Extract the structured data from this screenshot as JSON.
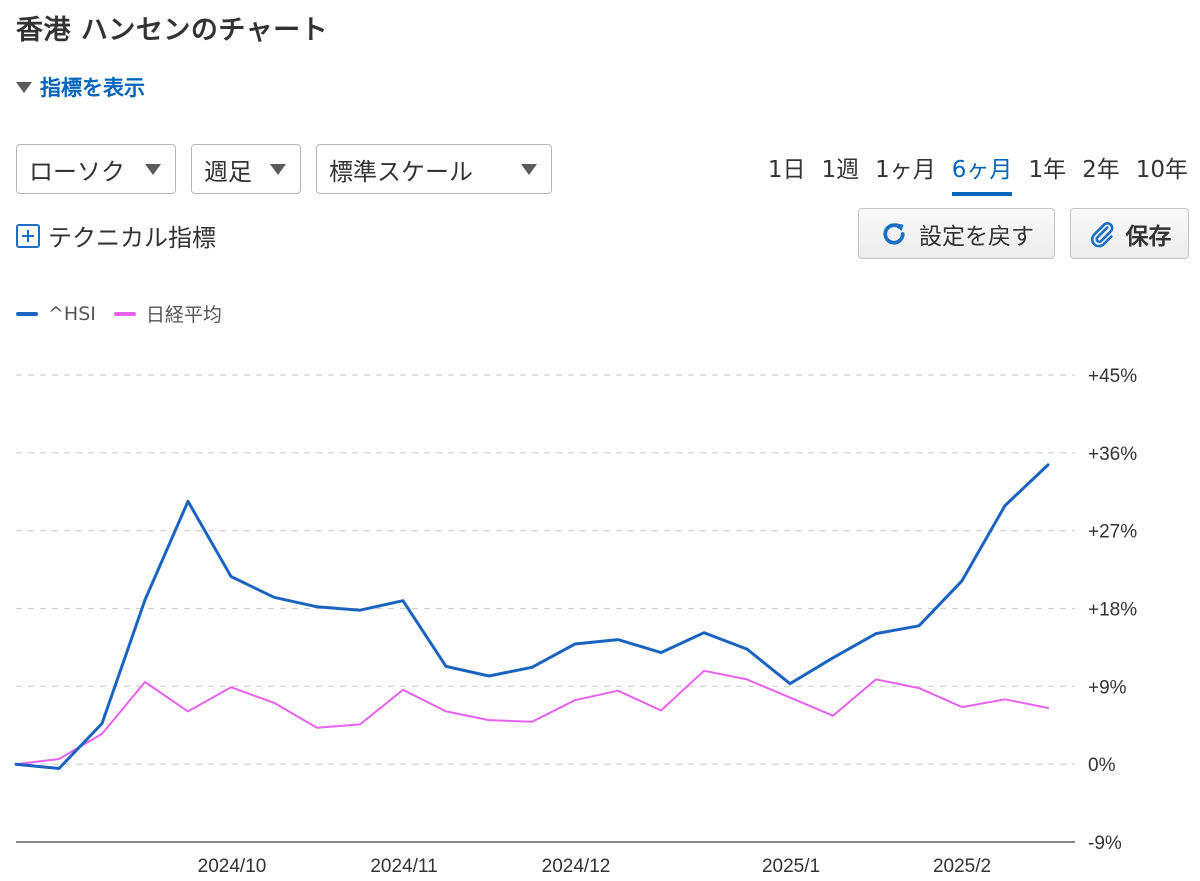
{
  "page": {
    "title": "香港 ハンセンのチャート"
  },
  "indicators": {
    "toggle_label": "指標を表示"
  },
  "controls": {
    "chart_type": "ローソク",
    "period": "週足",
    "scale": "標準スケール"
  },
  "ranges": [
    {
      "label": "1日"
    },
    {
      "label": "1週"
    },
    {
      "label": "1ヶ月"
    },
    {
      "label": "6ヶ月",
      "active": true
    },
    {
      "label": "1年"
    },
    {
      "label": "2年"
    },
    {
      "label": "10年"
    }
  ],
  "technical": {
    "label": "テクニカル指標"
  },
  "buttons": {
    "reset_label": "設定を戻す",
    "save_label": "保存"
  },
  "colors": {
    "hsi": "#1a64c0",
    "nikkei": "#e862ef",
    "accent": "#0066bb"
  },
  "chart_data": {
    "type": "line",
    "x_ticks": [
      "2024/10",
      "2024/11",
      "2024/12",
      "2025/1",
      "2025/2"
    ],
    "y_ticks": [
      "+45%",
      "+36%",
      "+27%",
      "+18%",
      "+9%",
      "0%",
      "-9%"
    ],
    "ylim": [
      -9,
      45
    ],
    "grid": true,
    "legend_position": "top-left",
    "series": [
      {
        "name": "^HSI",
        "values": [
          0,
          -0.5,
          4.7,
          19,
          30.4,
          21.7,
          19.3,
          18.2,
          17.8,
          18.9,
          11.3,
          10.2,
          11.2,
          13.9,
          14.4,
          12.9,
          15.2,
          13.3,
          9.3,
          12.3,
          15.1,
          16,
          21.2,
          29.9,
          34.6
        ]
      },
      {
        "name": "日経平均",
        "values": [
          0,
          0.6,
          3.5,
          9.5,
          6.1,
          8.9,
          7.1,
          4.2,
          4.6,
          8.6,
          6.1,
          5.1,
          4.9,
          7.4,
          8.5,
          6.2,
          10.8,
          9.8,
          7.7,
          5.6,
          9.8,
          8.8,
          6.6,
          7.5,
          6.5
        ]
      }
    ]
  }
}
